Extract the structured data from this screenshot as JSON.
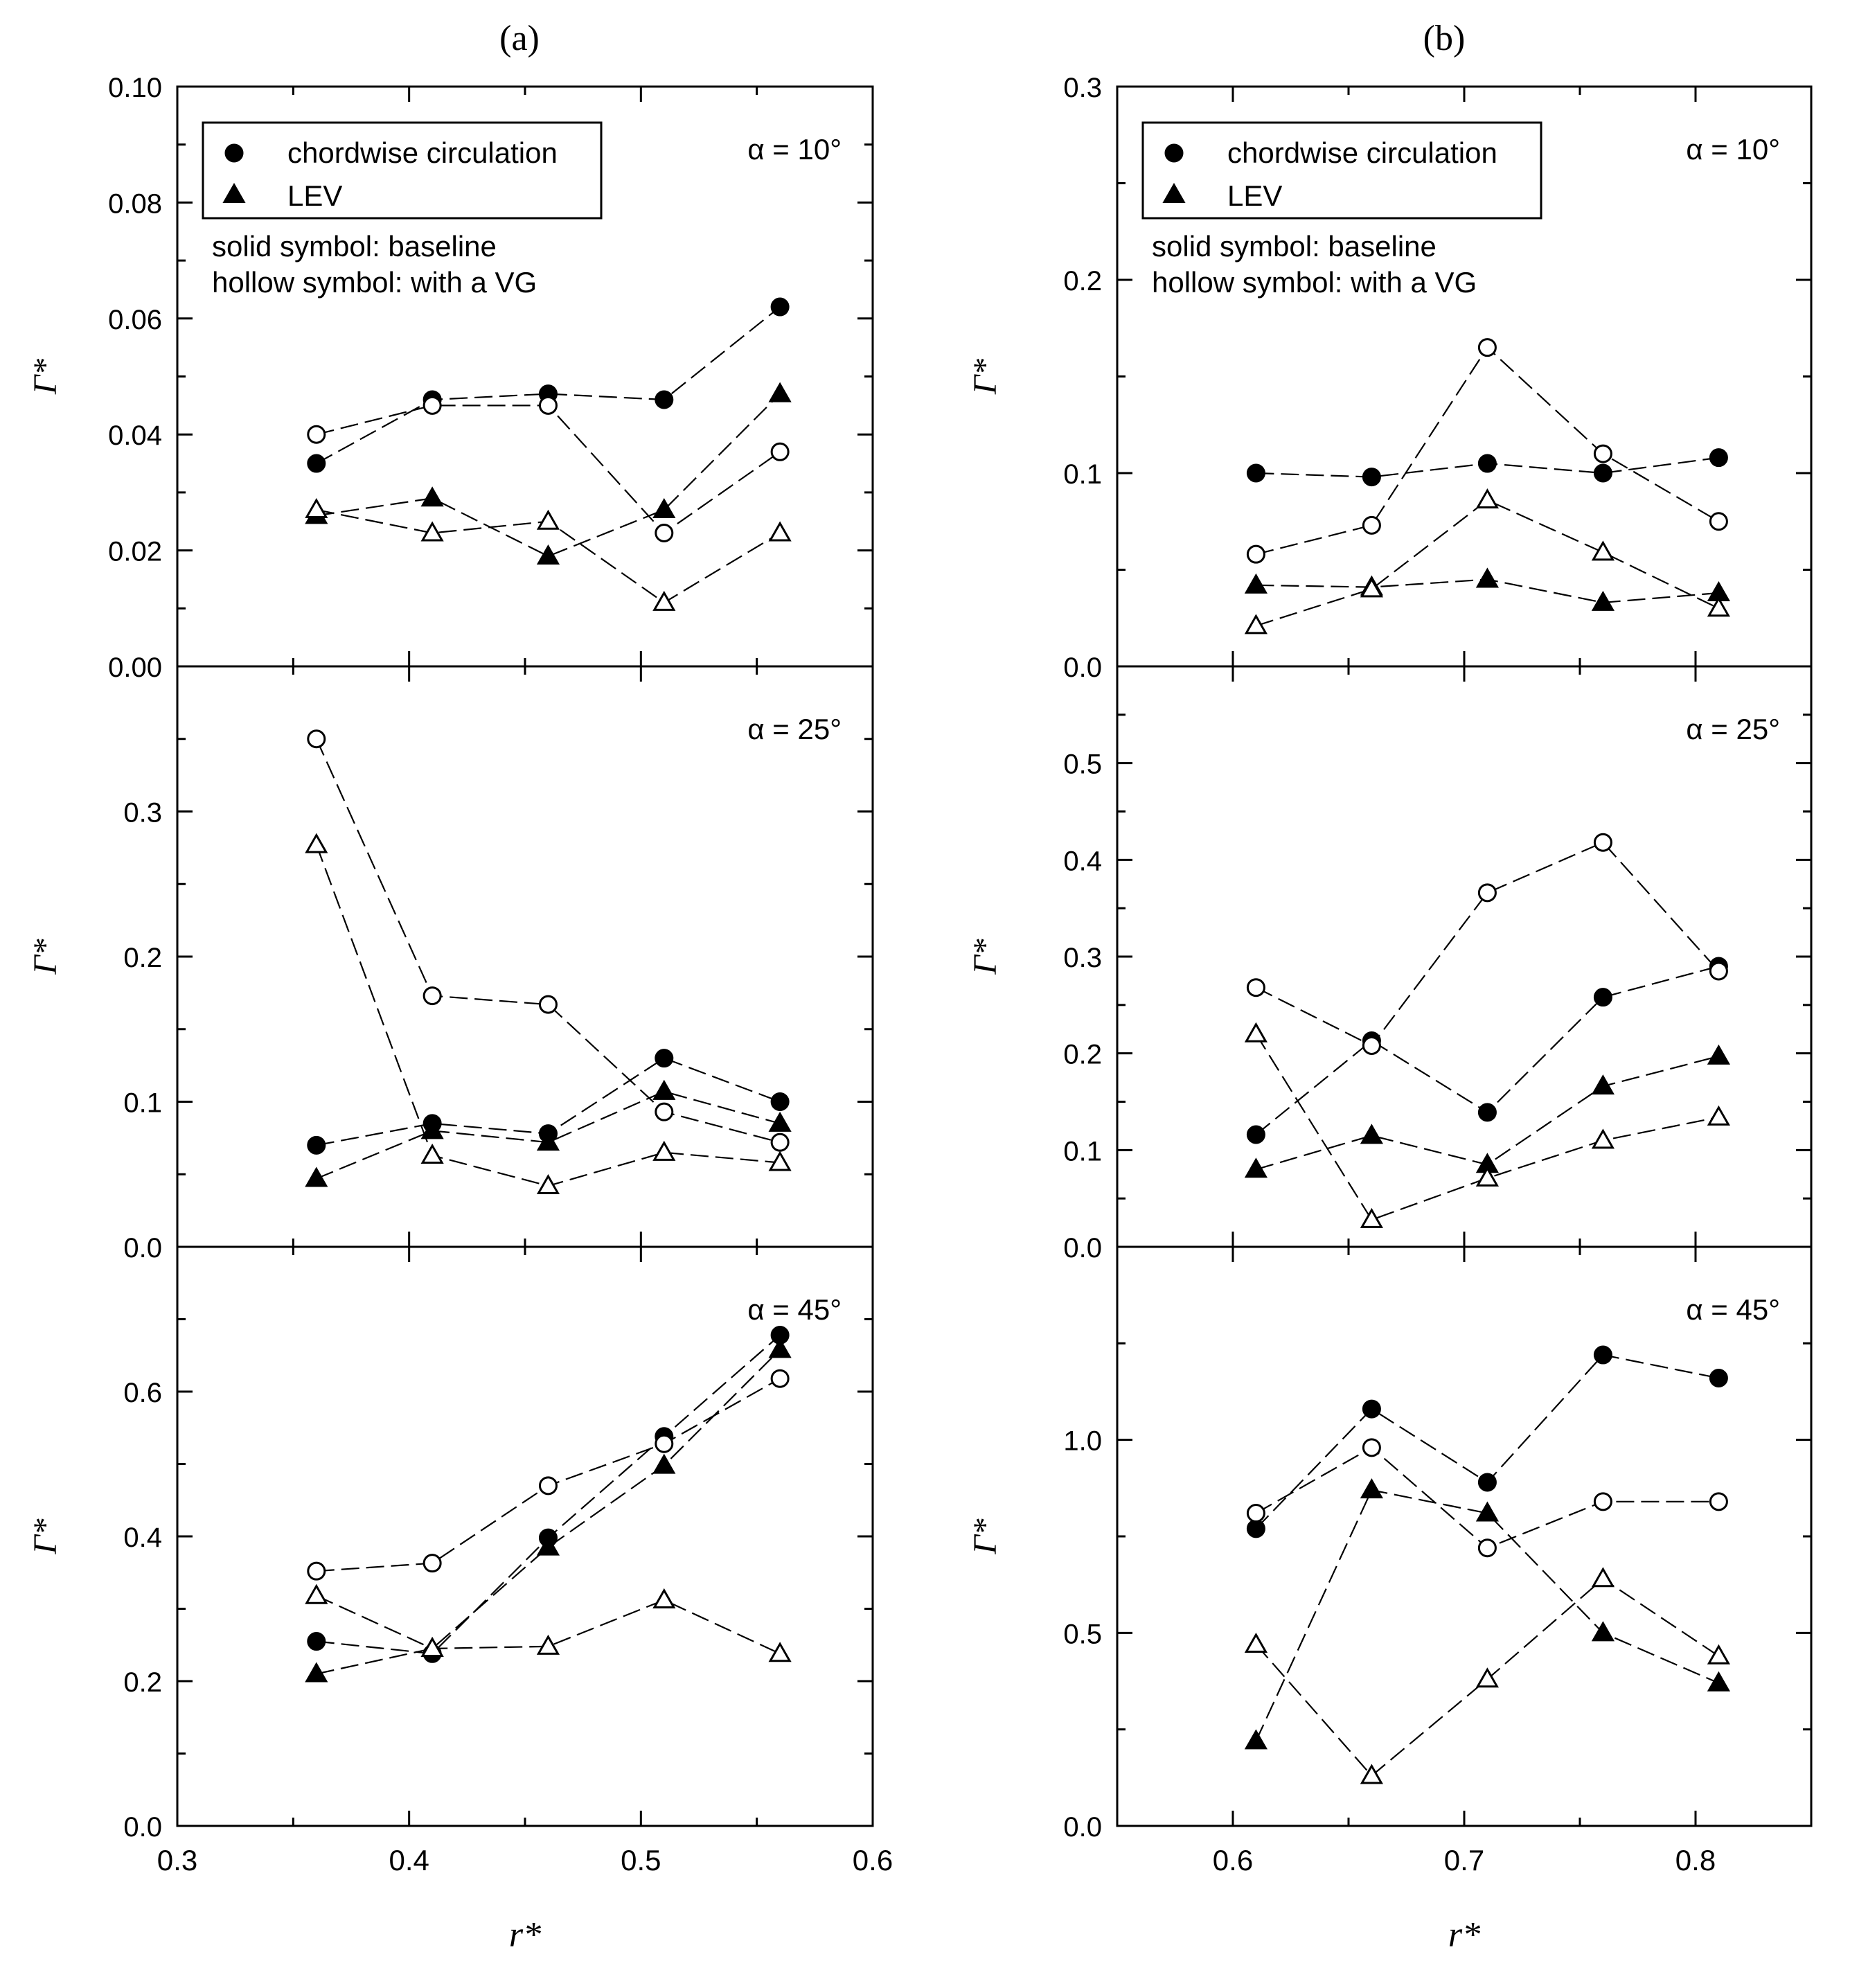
{
  "figure": {
    "legend": {
      "circle_label": "chordwise circulation",
      "triangle_label": "LEV",
      "note_solid": "solid symbol: baseline",
      "note_hollow": "hollow symbol: with a VG"
    },
    "colors": {
      "ink": "#000000",
      "background": "#ffffff",
      "hollow_fill": "#ffffff"
    }
  },
  "chart_data": [
    {
      "column_title": "(a)",
      "type": "line",
      "xlabel": "r*",
      "xlim": [
        0.3,
        0.6
      ],
      "xticks": [
        0.3,
        0.4,
        0.5,
        0.6
      ],
      "xtick_labels": [
        "0.3",
        "0.4",
        "0.5",
        "0.6"
      ],
      "x": [
        0.36,
        0.41,
        0.46,
        0.51,
        0.56
      ],
      "panels": [
        {
          "alpha_label": "α = 10°",
          "ylabel": "Γ*",
          "ylim": [
            0,
            0.1
          ],
          "yticks": [
            0,
            0.02,
            0.04,
            0.06,
            0.08,
            0.1
          ],
          "ytick_labels": [
            "0.00",
            "0.02",
            "0.04",
            "0.06",
            "0.08",
            "0.10"
          ],
          "show_legend": true,
          "series": [
            {
              "name": "chordwise circulation (baseline)",
              "marker": "circle",
              "filled": true,
              "values": [
                0.035,
                0.046,
                0.047,
                0.046,
                0.062
              ]
            },
            {
              "name": "chordwise circulation (with a VG)",
              "marker": "circle",
              "filled": false,
              "values": [
                0.04,
                0.045,
                0.045,
                0.023,
                0.037
              ]
            },
            {
              "name": "LEV (baseline)",
              "marker": "triangle",
              "filled": true,
              "values": [
                0.026,
                0.029,
                0.019,
                0.027,
                0.047
              ]
            },
            {
              "name": "LEV (with a VG)",
              "marker": "triangle",
              "filled": false,
              "values": [
                0.027,
                0.023,
                0.025,
                0.011,
                0.023
              ]
            }
          ]
        },
        {
          "alpha_label": "α = 25°",
          "ylabel": "Γ*",
          "ylim": [
            0,
            0.4
          ],
          "yticks": [
            0,
            0.1,
            0.2,
            0.3
          ],
          "ytick_labels": [
            "0.0",
            "0.1",
            "0.2",
            "0.3"
          ],
          "show_legend": false,
          "series": [
            {
              "name": "chordwise circulation (baseline)",
              "marker": "circle",
              "filled": true,
              "values": [
                0.07,
                0.085,
                0.078,
                0.13,
                0.1
              ]
            },
            {
              "name": "chordwise circulation (with a VG)",
              "marker": "circle",
              "filled": false,
              "values": [
                0.35,
                0.173,
                0.167,
                0.093,
                0.072
              ]
            },
            {
              "name": "LEV (baseline)",
              "marker": "triangle",
              "filled": true,
              "values": [
                0.047,
                0.08,
                0.072,
                0.107,
                0.085
              ]
            },
            {
              "name": "LEV (with a VG)",
              "marker": "triangle",
              "filled": false,
              "values": [
                0.277,
                0.063,
                0.042,
                0.065,
                0.058
              ]
            }
          ]
        },
        {
          "alpha_label": "α = 45°",
          "ylabel": "Γ*",
          "ylim": [
            0,
            0.8
          ],
          "yticks": [
            0,
            0.2,
            0.4,
            0.6
          ],
          "ytick_labels": [
            "0.0",
            "0.2",
            "0.4",
            "0.6"
          ],
          "show_legend": false,
          "series": [
            {
              "name": "chordwise circulation (baseline)",
              "marker": "circle",
              "filled": true,
              "values": [
                0.255,
                0.238,
                0.398,
                0.538,
                0.678
              ]
            },
            {
              "name": "chordwise circulation (with a VG)",
              "marker": "circle",
              "filled": false,
              "values": [
                0.352,
                0.363,
                0.47,
                0.528,
                0.618
              ]
            },
            {
              "name": "LEV (baseline)",
              "marker": "triangle",
              "filled": true,
              "values": [
                0.21,
                0.245,
                0.385,
                0.498,
                0.658
              ]
            },
            {
              "name": "LEV (with a VG)",
              "marker": "triangle",
              "filled": false,
              "values": [
                0.318,
                0.245,
                0.248,
                0.312,
                0.238
              ]
            }
          ]
        }
      ]
    },
    {
      "column_title": "(b)",
      "type": "line",
      "xlabel": "r*",
      "xlim": [
        0.55,
        0.85
      ],
      "xticks": [
        0.6,
        0.7,
        0.8
      ],
      "xtick_labels": [
        "0.6",
        "0.7",
        "0.8"
      ],
      "x": [
        0.61,
        0.66,
        0.71,
        0.76,
        0.81
      ],
      "panels": [
        {
          "alpha_label": "α = 10°",
          "ylabel": "Γ*",
          "ylim": [
            0,
            0.3
          ],
          "yticks": [
            0,
            0.1,
            0.2,
            0.3
          ],
          "ytick_labels": [
            "0.0",
            "0.1",
            "0.2",
            "0.3"
          ],
          "show_legend": true,
          "series": [
            {
              "name": "chordwise circulation (baseline)",
              "marker": "circle",
              "filled": true,
              "values": [
                0.1,
                0.098,
                0.105,
                0.1,
                0.108
              ]
            },
            {
              "name": "chordwise circulation (with a VG)",
              "marker": "circle",
              "filled": false,
              "values": [
                0.058,
                0.073,
                0.165,
                0.11,
                0.075
              ]
            },
            {
              "name": "LEV (baseline)",
              "marker": "triangle",
              "filled": true,
              "values": [
                0.042,
                0.041,
                0.045,
                0.033,
                0.038
              ]
            },
            {
              "name": "LEV (with a VG)",
              "marker": "triangle",
              "filled": false,
              "values": [
                0.021,
                0.04,
                0.086,
                0.059,
                0.03
              ]
            }
          ]
        },
        {
          "alpha_label": "α = 25°",
          "ylabel": "Γ*",
          "ylim": [
            0,
            0.6
          ],
          "yticks": [
            0,
            0.1,
            0.2,
            0.3,
            0.4,
            0.5
          ],
          "ytick_labels": [
            "0.0",
            "0.1",
            "0.2",
            "0.3",
            "0.4",
            "0.5"
          ],
          "show_legend": false,
          "series": [
            {
              "name": "chordwise circulation (baseline)",
              "marker": "circle",
              "filled": true,
              "values": [
                0.116,
                0.213,
                0.139,
                0.258,
                0.29
              ]
            },
            {
              "name": "chordwise circulation (with a VG)",
              "marker": "circle",
              "filled": false,
              "values": [
                0.268,
                0.208,
                0.366,
                0.418,
                0.285
              ]
            },
            {
              "name": "LEV (baseline)",
              "marker": "triangle",
              "filled": true,
              "values": [
                0.08,
                0.115,
                0.085,
                0.166,
                0.197
              ]
            },
            {
              "name": "LEV (with a VG)",
              "marker": "triangle",
              "filled": false,
              "values": [
                0.22,
                0.028,
                0.071,
                0.11,
                0.134
              ]
            }
          ]
        },
        {
          "alpha_label": "α = 45°",
          "ylabel": "Γ*",
          "ylim": [
            0,
            1.5
          ],
          "yticks": [
            0,
            0.5,
            1.0
          ],
          "ytick_labels": [
            "0.0",
            "0.5",
            "1.0"
          ],
          "show_legend": false,
          "series": [
            {
              "name": "chordwise circulation (baseline)",
              "marker": "circle",
              "filled": true,
              "values": [
                0.77,
                1.08,
                0.89,
                1.22,
                1.16
              ]
            },
            {
              "name": "chordwise circulation (with a VG)",
              "marker": "circle",
              "filled": false,
              "values": [
                0.81,
                0.98,
                0.72,
                0.84,
                0.84
              ]
            },
            {
              "name": "LEV (baseline)",
              "marker": "triangle",
              "filled": true,
              "values": [
                0.22,
                0.87,
                0.81,
                0.5,
                0.37
              ]
            },
            {
              "name": "LEV (with a VG)",
              "marker": "triangle",
              "filled": false,
              "values": [
                0.47,
                0.13,
                0.38,
                0.64,
                0.44
              ]
            }
          ]
        }
      ]
    }
  ]
}
